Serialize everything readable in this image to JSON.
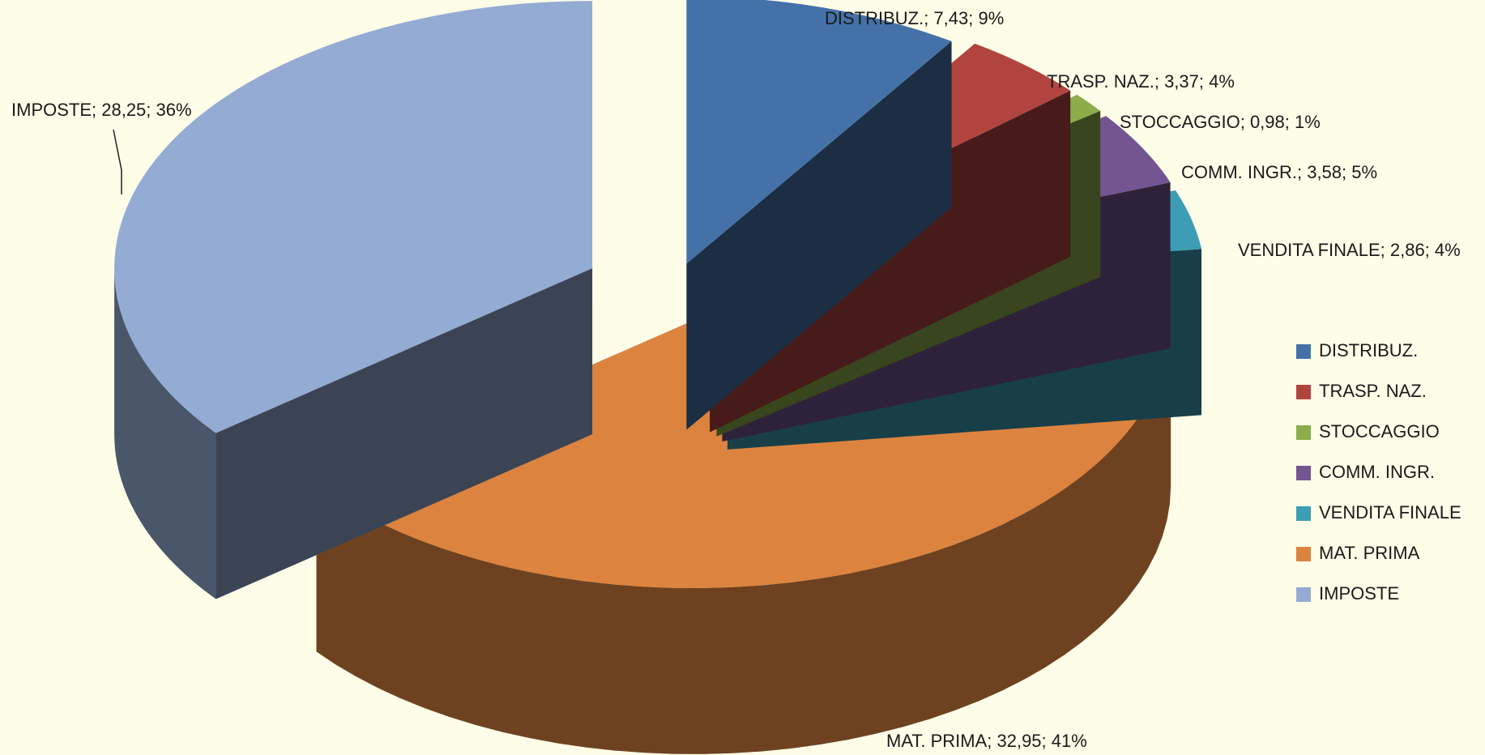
{
  "chart_data": {
    "type": "pie",
    "title": "",
    "slices": [
      {
        "name": "DISTRIBUZ.",
        "value": 7.43,
        "value_label": "7,43",
        "percent": 9,
        "color": "#4472a8",
        "label": "DISTRIBUZ.; 7,43; 9%"
      },
      {
        "name": "TRASP. NAZ.",
        "value": 3.37,
        "value_label": "3,37",
        "percent": 4,
        "color": "#b2443f",
        "label": "TRASP. NAZ.; 3,37; 4%"
      },
      {
        "name": "STOCCAGGIO",
        "value": 0.98,
        "value_label": "0,98",
        "percent": 1,
        "color": "#8cad4a",
        "label": "STOCCAGGIO; 0,98; 1%"
      },
      {
        "name": "COMM. INGR.",
        "value": 3.58,
        "value_label": "3,58",
        "percent": 5,
        "color": "#735591",
        "label": "COMM. INGR.; 3,58; 5%"
      },
      {
        "name": "VENDITA FINALE",
        "value": 2.86,
        "value_label": "2,86",
        "percent": 4,
        "color": "#3d9db4",
        "label": "VENDITA FINALE; 2,86; 4%"
      },
      {
        "name": "MAT. PRIMA",
        "value": 32.95,
        "value_label": "32,95",
        "percent": 41,
        "color": "#dc843f",
        "label": "MAT. PRIMA; 32,95; 41%"
      },
      {
        "name": "IMPOSTE",
        "value": 28.25,
        "value_label": "28,25",
        "percent": 36,
        "color": "#94abd4",
        "label": "IMPOSTE; 28,25; 36%"
      }
    ],
    "legend": {
      "placement": "right",
      "entries": [
        "DISTRIBUZ.",
        "TRASP. NAZ.",
        "STOCCAGGIO",
        "COMM. INGR.",
        "VENDITA FINALE",
        "MAT. PRIMA",
        "IMPOSTE"
      ]
    },
    "style": "3d-exploded"
  }
}
